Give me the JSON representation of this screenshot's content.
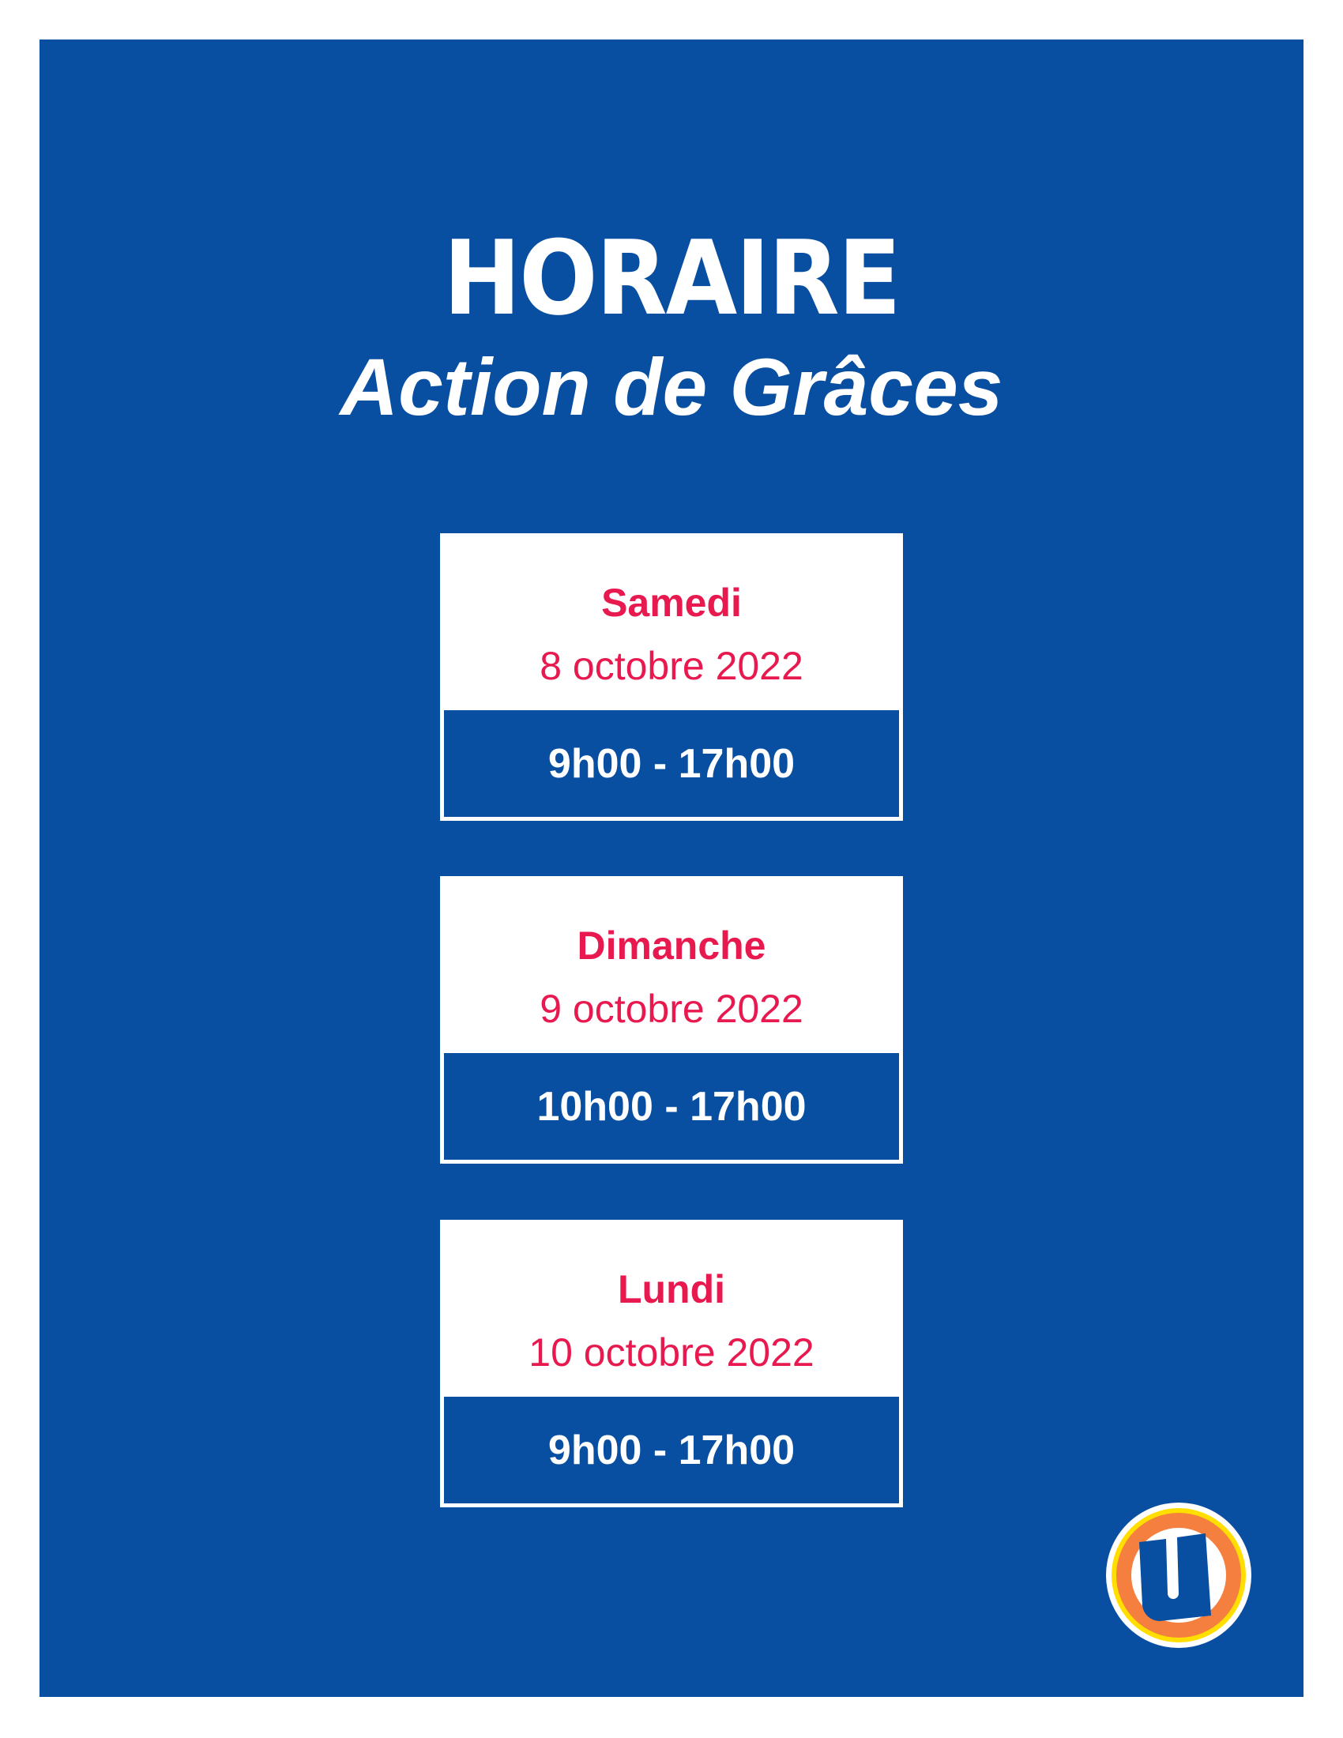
{
  "title": "HORAIRE",
  "subtitle": "Action de Grâces",
  "schedule": [
    {
      "day": "Samedi",
      "date": "8 octobre 2022",
      "hours": "9h00 - 17h00"
    },
    {
      "day": "Dimanche",
      "date": "9 octobre 2022",
      "hours": "10h00 - 17h00"
    },
    {
      "day": "Lundi",
      "date": "10 octobre 2022",
      "hours": "9h00 - 17h00"
    }
  ],
  "logo": {
    "letter": "U",
    "icon": "brand-u-logo-icon"
  },
  "colors": {
    "background": "#084ea1",
    "accent": "#e8194f",
    "logo_orange": "#f47f3e",
    "logo_yellow": "#ffde00"
  }
}
